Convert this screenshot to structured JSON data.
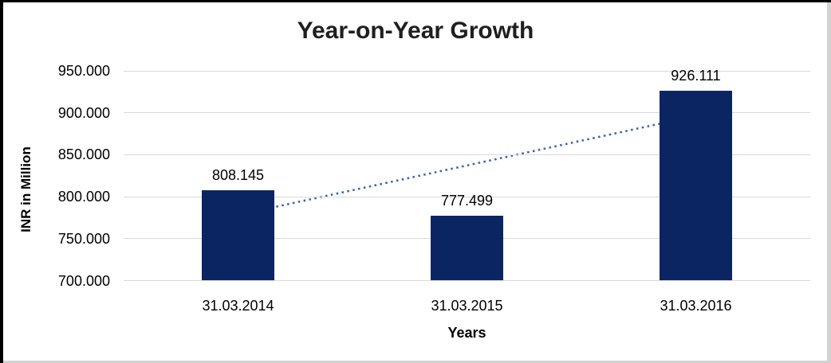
{
  "chart_data": {
    "type": "bar",
    "title": "Year-on-Year Growth",
    "xlabel": "Years",
    "ylabel": "INR in Million",
    "categories": [
      "31.03.2014",
      "31.03.2015",
      "31.03.2016"
    ],
    "values": [
      808.145,
      777.499,
      926.111
    ],
    "data_labels": [
      "808.145",
      "777.499",
      "926.111"
    ],
    "series_name": "INR in Million",
    "ylim": [
      700,
      950
    ],
    "y_ticks": [
      {
        "value": 950,
        "label": "950.000"
      },
      {
        "value": 900,
        "label": "900.000"
      },
      {
        "value": 850,
        "label": "850.000"
      },
      {
        "value": 800,
        "label": "800.000"
      },
      {
        "value": 750,
        "label": "750.000"
      },
      {
        "value": 700,
        "label": "700.000"
      }
    ],
    "grid": "horizontal",
    "legend": "none",
    "trendline": {
      "type": "linear",
      "style": "dotted"
    },
    "colors": {
      "bar": "#0B2562",
      "trendline": "#4167AE",
      "gridline": "#D9D9D9",
      "title_text": "#1F1F1F",
      "axis_text": "#000000",
      "background": "#FFFFFF",
      "border_dark": "#000000",
      "border_light": "#D3D3D3"
    }
  }
}
